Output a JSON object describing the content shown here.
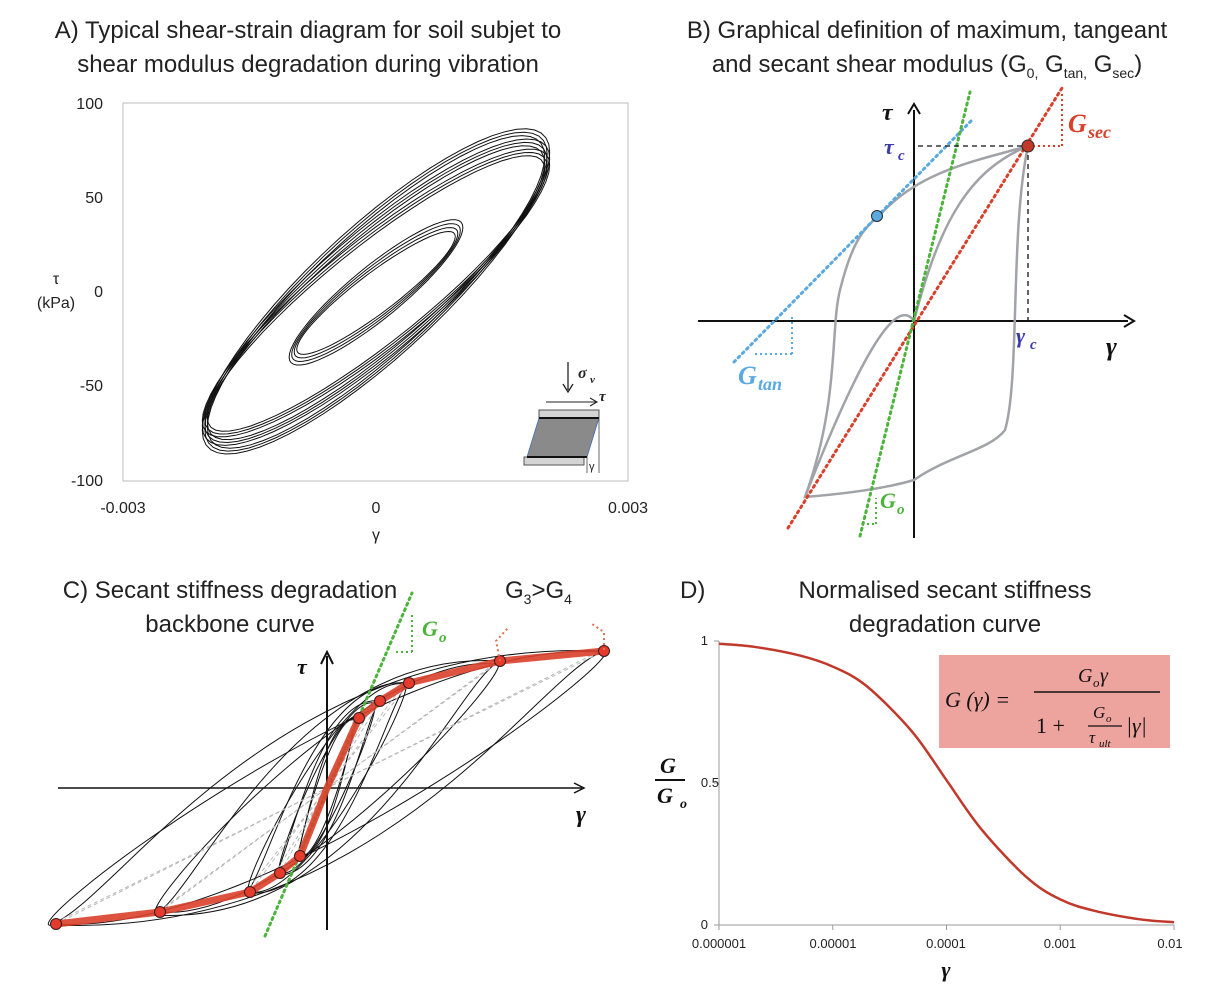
{
  "panelA": {
    "title_line1": "A) Typical shear-strain diagram for soil subjet to",
    "title_line2": "shear modulus degradation during vibration",
    "y_label_sym": "τ",
    "y_label_unit": "(kPa)",
    "x_label": "γ",
    "y_ticks": [
      "100",
      "50",
      "0",
      "-50",
      "-100"
    ],
    "x_ticks": [
      "-0.003",
      "0",
      "0.003"
    ],
    "inset_sigma": "σ",
    "inset_sigma_sub": "v",
    "inset_tau": "τ",
    "inset_gamma": "γ"
  },
  "panelB": {
    "title_line1": "B) Graphical definition of maximum, tangeant",
    "title_line2_pre": "and secant shear modulus (G",
    "title_sub0": "0,",
    "title_mid1": " G",
    "title_sub1": "tan,",
    "title_mid2": " G",
    "title_sub2": "sec",
    "title_end": ")",
    "tau": "τ",
    "tau_c": "τ",
    "tau_c_sub": "c",
    "gamma": "γ",
    "gamma_c": "γ",
    "gamma_c_sub": "c",
    "g_sec": "G",
    "g_sec_sub": "sec",
    "g_tan": "G",
    "g_tan_sub": "tan",
    "g_o": "G",
    "g_o_sub": "o",
    "colors": {
      "secant": "#d9402b",
      "tangent": "#5aa9e0",
      "initial": "#4cb33b",
      "loop": "#a0a3a8",
      "tau_c": "#3a3aa8"
    }
  },
  "panelC": {
    "title_line1": "C) Secant stiffness degradation",
    "title_line2": "backbone curve",
    "ratio_pre": "G",
    "ratio_sub1": "3",
    "ratio_mid": ">G",
    "ratio_sub2": "4",
    "tau": "τ",
    "gamma": "γ",
    "g_o": "G",
    "g_o_sub": "o",
    "colors": {
      "backbone": "#d9402b",
      "marker": "#e53b2c",
      "initial": "#4cb33b",
      "secant": "#b8b8b8"
    }
  },
  "panelD": {
    "title_line1": "D)",
    "title_line2": "Normalised secant stiffness",
    "title_line3": "degradation curve",
    "y_ticks": [
      "1",
      "0.5",
      "0"
    ],
    "x_ticks": [
      "0.000001",
      "0.00001",
      "0.0001",
      "0.001",
      "0.01"
    ],
    "x_label": "γ",
    "y_label_num": "G",
    "y_label_den": "G",
    "y_label_den_sub": "o",
    "formula_lhs": "G (γ) =",
    "formula_num": "G",
    "formula_num_sub": "o",
    "formula_num_tail": " γ",
    "formula_den_pre": "1 +",
    "formula_frac_num": "G",
    "formula_frac_num_sub": "o",
    "formula_frac_den": "τ",
    "formula_frac_den_sub": "ult",
    "formula_den_tail": "|γ|",
    "colors": {
      "curve": "#c0392b",
      "formula_bg": "#eda39e"
    },
    "chart_data": {
      "type": "line",
      "x_scale": "log",
      "xlim": [
        1e-06,
        0.01
      ],
      "ylim": [
        0,
        1
      ],
      "series": [
        {
          "x": [
            1e-06,
            2e-06,
            5e-06,
            1e-05,
            2e-05,
            5e-05,
            0.0001,
            0.0002,
            0.0005,
            0.001,
            0.002,
            0.005,
            0.01
          ],
          "values": [
            0.99,
            0.98,
            0.95,
            0.91,
            0.84,
            0.68,
            0.51,
            0.34,
            0.17,
            0.09,
            0.05,
            0.02,
            0.01
          ]
        }
      ]
    }
  }
}
